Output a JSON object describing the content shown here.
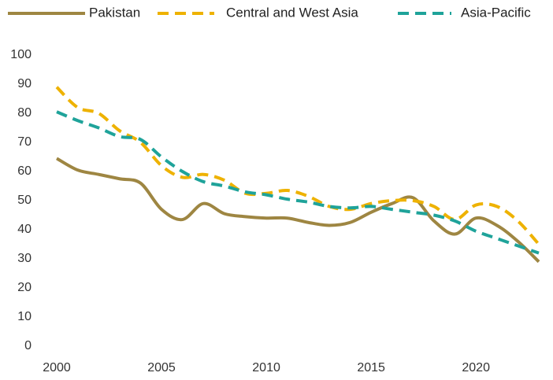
{
  "chart_data": {
    "type": "line",
    "x": [
      2000,
      2001,
      2002,
      2003,
      2004,
      2005,
      2006,
      2007,
      2008,
      2009,
      2010,
      2011,
      2012,
      2013,
      2014,
      2015,
      2016,
      2017,
      2018,
      2019,
      2020,
      2021,
      2022,
      2023
    ],
    "series": [
      {
        "name": "Pakistan",
        "color": "#9e8642",
        "dash": "solid",
        "values": [
          64.5,
          60.5,
          59,
          57.5,
          56,
          47,
          43.5,
          49,
          45.5,
          44.5,
          44,
          44,
          42.5,
          41.5,
          42.5,
          46,
          49,
          51,
          43,
          38.5,
          44,
          41.5,
          36,
          29
        ]
      },
      {
        "name": "Central and West Asia",
        "color": "#eeb200",
        "dash": "dashed",
        "values": [
          89,
          82,
          80,
          74,
          70,
          62,
          58,
          59,
          57,
          52.5,
          52.5,
          53.5,
          51.5,
          48,
          47,
          49,
          50,
          50,
          48,
          43.5,
          48.5,
          48,
          43,
          35
        ]
      },
      {
        "name": "Asia-Pacific",
        "color": "#1fa39a",
        "dash": "dashed",
        "values": [
          80.5,
          77.5,
          75,
          72,
          71,
          65,
          60,
          56.5,
          55,
          53,
          52,
          50.5,
          49.5,
          48,
          47.5,
          48,
          47,
          46,
          45,
          43,
          39.5,
          37,
          34.5,
          32
        ]
      }
    ],
    "xlim": [
      2000,
      2023
    ],
    "xticks": [
      2000,
      2005,
      2010,
      2015,
      2020
    ],
    "ylim": [
      0,
      100
    ],
    "yticks": [
      0,
      10,
      20,
      30,
      40,
      50,
      60,
      70,
      80,
      90,
      100
    ],
    "grid": false,
    "legend": "top"
  }
}
